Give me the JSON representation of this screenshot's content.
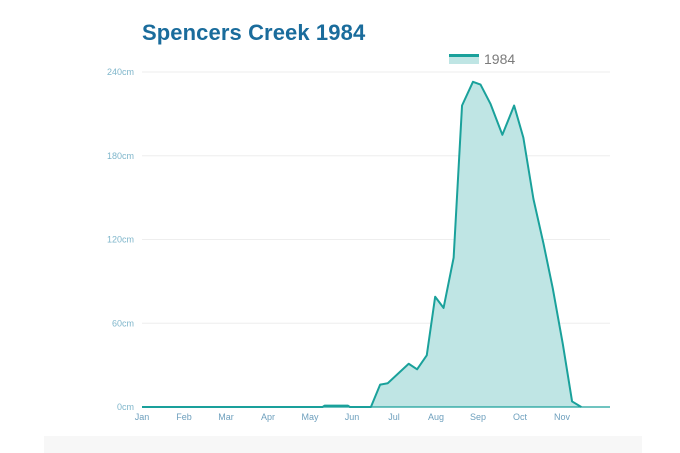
{
  "colors": {
    "title": "#1a6c9c",
    "series_line": "#1aa19b",
    "series_fill": "#bfe5e4",
    "grid": "#eeeeee",
    "axis": "#1aa19b",
    "tick_label": "#7fb6cb"
  },
  "chart_data": {
    "type": "area",
    "title": "Spencers Creek 1984",
    "xlabel": "",
    "ylabel": "",
    "legend_position": "top-right",
    "grid": true,
    "ylim": [
      0,
      240
    ],
    "yticks": [
      {
        "value": 0,
        "label": "0cm"
      },
      {
        "value": 60,
        "label": "60cm"
      },
      {
        "value": 120,
        "label": "120cm"
      },
      {
        "value": 180,
        "label": "180cm"
      },
      {
        "value": 240,
        "label": "240cm"
      }
    ],
    "xlim": [
      1,
      13.4
    ],
    "xticks": [
      {
        "value": 1,
        "label": "Jan"
      },
      {
        "value": 2,
        "label": "Feb"
      },
      {
        "value": 3,
        "label": "Mar"
      },
      {
        "value": 4,
        "label": "Apr"
      },
      {
        "value": 5,
        "label": "May"
      },
      {
        "value": 6,
        "label": "Jun"
      },
      {
        "value": 7,
        "label": "Jul"
      },
      {
        "value": 8,
        "label": "Aug"
      },
      {
        "value": 9,
        "label": "Sep"
      },
      {
        "value": 10,
        "label": "Oct"
      },
      {
        "value": 11,
        "label": "Nov"
      }
    ],
    "x_unit": "month",
    "series": [
      {
        "name": "1984",
        "points": [
          [
            1.0,
            0
          ],
          [
            5.3,
            0
          ],
          [
            5.35,
            1
          ],
          [
            5.9,
            1
          ],
          [
            5.95,
            0
          ],
          [
            6.45,
            0
          ],
          [
            6.67,
            16
          ],
          [
            6.85,
            17
          ],
          [
            7.35,
            31
          ],
          [
            7.55,
            27
          ],
          [
            7.78,
            37
          ],
          [
            7.98,
            79
          ],
          [
            8.18,
            71
          ],
          [
            8.42,
            107
          ],
          [
            8.62,
            216
          ],
          [
            8.88,
            233
          ],
          [
            9.06,
            231
          ],
          [
            9.3,
            217
          ],
          [
            9.58,
            195
          ],
          [
            9.86,
            216
          ],
          [
            10.08,
            193
          ],
          [
            10.32,
            149
          ],
          [
            10.56,
            117
          ],
          [
            10.78,
            85
          ],
          [
            11.02,
            45
          ],
          [
            11.24,
            4
          ],
          [
            11.46,
            0
          ]
        ]
      }
    ]
  }
}
